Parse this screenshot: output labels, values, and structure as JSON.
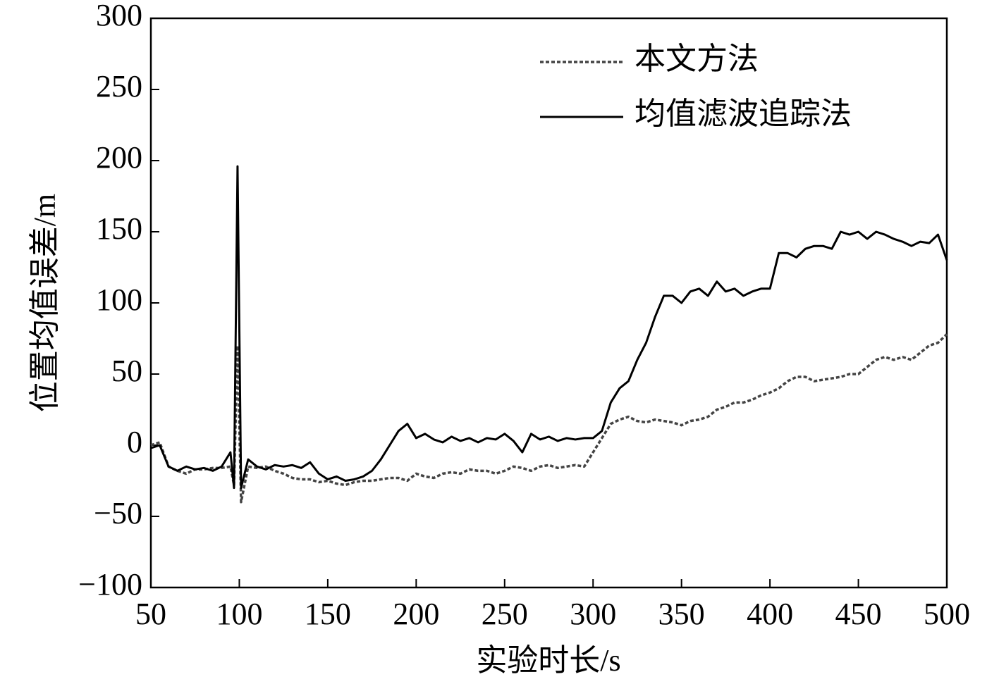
{
  "chart_data": {
    "type": "line",
    "xlabel": "实验时长/s",
    "ylabel": "位置均值误差/m",
    "x": [
      50,
      55,
      60,
      65,
      70,
      75,
      80,
      85,
      90,
      95,
      97,
      99,
      101,
      105,
      110,
      115,
      120,
      125,
      130,
      135,
      140,
      145,
      150,
      155,
      160,
      165,
      170,
      175,
      180,
      185,
      190,
      195,
      200,
      205,
      210,
      215,
      220,
      225,
      230,
      235,
      240,
      245,
      250,
      255,
      260,
      265,
      270,
      275,
      280,
      285,
      290,
      295,
      300,
      305,
      310,
      315,
      320,
      325,
      330,
      335,
      340,
      345,
      350,
      355,
      360,
      365,
      370,
      375,
      380,
      385,
      390,
      395,
      400,
      405,
      410,
      415,
      420,
      425,
      430,
      435,
      440,
      445,
      450,
      455,
      460,
      465,
      470,
      475,
      480,
      485,
      490,
      495,
      500
    ],
    "series": [
      {
        "name": "本文方法",
        "color": "#444444",
        "dash": true,
        "values": [
          0,
          2,
          -15,
          -18,
          -20,
          -17,
          -17,
          -16,
          -16,
          -15,
          -28,
          70,
          -40,
          -15,
          -16,
          -15,
          -18,
          -20,
          -23,
          -24,
          -24,
          -26,
          -25,
          -27,
          -28,
          -26,
          -25,
          -25,
          -24,
          -23,
          -23,
          -25,
          -20,
          -22,
          -23,
          -20,
          -19,
          -20,
          -17,
          -18,
          -18,
          -20,
          -18,
          -15,
          -16,
          -18,
          -15,
          -14,
          -16,
          -15,
          -14,
          -15,
          -5,
          5,
          15,
          18,
          20,
          17,
          16,
          18,
          17,
          16,
          14,
          17,
          18,
          20,
          25,
          27,
          30,
          30,
          32,
          35,
          37,
          40,
          45,
          48,
          48,
          45,
          46,
          47,
          48,
          50,
          50,
          55,
          60,
          62,
          60,
          62,
          60,
          65,
          70,
          72,
          78
        ]
      },
      {
        "name": "均值滤波追踪法",
        "color": "#000000",
        "dash": false,
        "values": [
          -2,
          0,
          -15,
          -18,
          -15,
          -17,
          -16,
          -18,
          -15,
          -5,
          -30,
          196,
          -30,
          -10,
          -15,
          -17,
          -14,
          -15,
          -14,
          -16,
          -12,
          -20,
          -24,
          -22,
          -25,
          -24,
          -22,
          -18,
          -10,
          0,
          10,
          15,
          5,
          8,
          4,
          2,
          6,
          3,
          5,
          2,
          5,
          4,
          8,
          3,
          -5,
          8,
          4,
          6,
          3,
          5,
          4,
          5,
          5,
          10,
          30,
          40,
          45,
          60,
          72,
          90,
          105,
          105,
          100,
          108,
          110,
          105,
          115,
          108,
          110,
          105,
          108,
          110,
          110,
          135,
          135,
          132,
          138,
          140,
          140,
          138,
          150,
          148,
          150,
          145,
          150,
          148,
          145,
          143,
          140,
          143,
          142,
          148,
          130
        ]
      }
    ],
    "xlim": [
      50,
      500
    ],
    "xticks": [
      50,
      100,
      150,
      200,
      250,
      300,
      350,
      400,
      450,
      500
    ],
    "ylim": [
      -100,
      300
    ],
    "yticks": [
      {
        "value": -100,
        "label": "−100"
      },
      {
        "value": -50,
        "label": "−50"
      },
      0,
      50,
      100,
      150,
      200,
      250,
      300
    ],
    "legend": "upper right"
  }
}
